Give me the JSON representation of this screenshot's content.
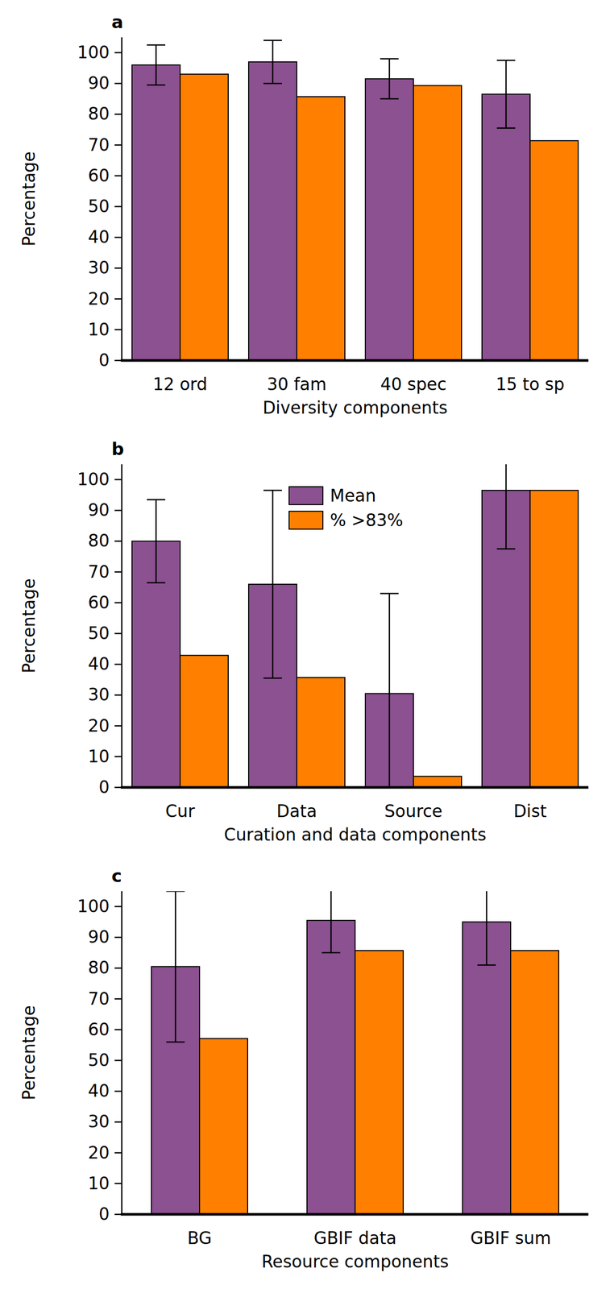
{
  "chart_data": [
    {
      "type": "bar",
      "title": "a",
      "xlabel": "Diversity components",
      "ylabel": "Percentage",
      "categories": [
        "12 ord",
        "30 fam",
        "40 spec",
        "15 to sp"
      ],
      "series": [
        {
          "name": "Mean",
          "color": "#8b5190",
          "values": [
            96,
            97,
            91.5,
            86.5
          ],
          "errors": [
            6.5,
            7,
            6.5,
            11
          ]
        },
        {
          "name": "% >83%",
          "color": "#ff8000",
          "values": [
            93,
            85.7,
            89.3,
            71.4
          ]
        }
      ],
      "ylim": [
        0,
        105
      ],
      "yticks": [
        0,
        10,
        20,
        30,
        40,
        50,
        60,
        70,
        80,
        90,
        100
      ],
      "grid": false,
      "legend": false
    },
    {
      "type": "bar",
      "title": "b",
      "xlabel": "Curation and data components",
      "ylabel": "Percentage",
      "categories": [
        "Cur",
        "Data",
        "Source",
        "Dist"
      ],
      "series": [
        {
          "name": "Mean",
          "color": "#8b5190",
          "values": [
            80,
            66,
            30.5,
            96.5
          ],
          "errors": [
            13.5,
            30.5,
            32.5,
            19
          ]
        },
        {
          "name": "% >83%",
          "color": "#ff8000",
          "values": [
            42.9,
            35.7,
            3.6,
            96.5
          ]
        }
      ],
      "ylim": [
        0,
        105
      ],
      "yticks": [
        0,
        10,
        20,
        30,
        40,
        50,
        60,
        70,
        80,
        90,
        100
      ],
      "grid": false,
      "legend": "top"
    },
    {
      "type": "bar",
      "title": "c",
      "xlabel": "Resource components",
      "ylabel": "Percentage",
      "categories": [
        "BG",
        "GBIF data",
        "GBIF sum"
      ],
      "series": [
        {
          "name": "Mean",
          "color": "#8b5190",
          "values": [
            80.5,
            95.5,
            95
          ],
          "errors": [
            24.5,
            10.5,
            14
          ]
        },
        {
          "name": "% >83%",
          "color": "#ff8000",
          "values": [
            57.1,
            85.7,
            85.7
          ]
        }
      ],
      "ylim": [
        0,
        105
      ],
      "yticks": [
        0,
        10,
        20,
        30,
        40,
        50,
        60,
        70,
        80,
        90,
        100
      ],
      "grid": false,
      "legend": false
    }
  ]
}
